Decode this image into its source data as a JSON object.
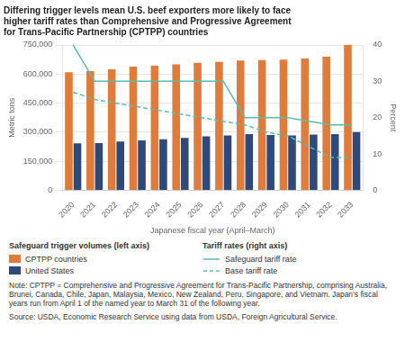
{
  "chart_data": {
    "type": "bar",
    "title": [
      "Differing trigger levels mean U.S. beef exporters more likely to face",
      "higher tariff rates than Comprehensive and Progressive Agreement",
      "for Trans-Pacific Partnership (CPTPP) countries"
    ],
    "categories": [
      "2020",
      "2021",
      "2022",
      "2023",
      "2024",
      "2025",
      "2026",
      "2027",
      "2028",
      "2029",
      "2030",
      "2031",
      "2032",
      "2033"
    ],
    "xlabel": "Japanese fiscal year (April–March)",
    "ylabel": "Metric tons",
    "y2label": "Percent",
    "series": [
      {
        "name": "CPTPP countries",
        "color": "#e07b39",
        "values": [
          610000,
          615000,
          625000,
          638000,
          643000,
          650000,
          658000,
          663000,
          670000,
          672000,
          675000,
          680000,
          690000,
          750000
        ]
      },
      {
        "name": "United States",
        "color": "#2d4a7a",
        "values": [
          242000,
          244000,
          252000,
          258000,
          263000,
          270000,
          278000,
          283000,
          290000,
          285000,
          283000,
          288000,
          290000,
          300000
        ]
      },
      {
        "name": "Safeguard tariff rate",
        "type": "line",
        "axis": "y2",
        "color": "#5bbcb0",
        "line_style": "solid",
        "values": [
          40,
          30,
          30,
          30,
          30,
          30,
          30,
          30,
          20,
          20,
          20,
          19,
          18,
          18
        ]
      },
      {
        "name": "Base tariff rate",
        "type": "line",
        "axis": "y2",
        "color": "#5bbcb0",
        "line_style": "dashed",
        "values": [
          27,
          25,
          24,
          23,
          22,
          21,
          20,
          19,
          18,
          16,
          15,
          12,
          9,
          9
        ]
      }
    ],
    "ylim": [
      0,
      750000
    ],
    "yticks": [
      0,
      {
        "value": 150000,
        "label": "150,000"
      },
      {
        "value": 300000,
        "label": "300,000"
      },
      {
        "value": 450000,
        "label": "450,000"
      },
      {
        "value": 600000,
        "label": "600,000"
      },
      {
        "value": 750000,
        "label": "750,000"
      }
    ],
    "y2lim": [
      0,
      40
    ],
    "y2ticks": [
      0,
      10,
      20,
      30,
      40
    ],
    "grid": true,
    "legend": "bottom",
    "annotations": [
      "Safeguard trigger volumes (left axis)",
      "Tariff rates (right axis)",
      "Note: CPTPP = Comprehensive and Progressive Agreement for Trans-Pacific Partnership, comprising Australia, Brunei, Canada, Chile, Japan, Malaysia, Mexico, New Zealand, Peru, Singapore, and Vietnam. Japan’s fiscal years run from April 1 of the named year to March 31 of the following year.",
      "Source: USDA, Economic Research Service using data from USDA, Foreign Agricultural Service."
    ]
  }
}
